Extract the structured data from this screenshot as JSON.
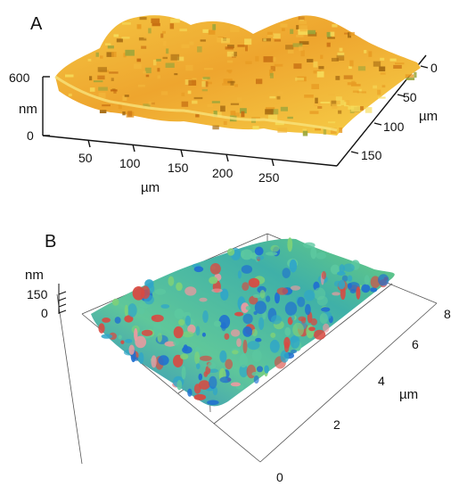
{
  "panels": [
    {
      "label": "A",
      "z_axis": {
        "unit": "nm",
        "ticks": [
          "600",
          "0"
        ]
      },
      "x_axis": {
        "unit": "µm",
        "ticks": [
          "50",
          "100",
          "150",
          "200",
          "250"
        ]
      },
      "y_axis": {
        "unit": "µm",
        "ticks": [
          "0",
          "50",
          "100",
          "150"
        ]
      },
      "surface_colors": [
        "#f6dc5a",
        "#f2b63a",
        "#e79a22",
        "#c46a10",
        "#a56a12",
        "#9aa53a"
      ]
    },
    {
      "label": "B",
      "z_axis": {
        "unit": "nm",
        "ticks": [
          "150",
          "0"
        ]
      },
      "x_axis": {
        "unit": "",
        "ticks": []
      },
      "y_axis": {
        "unit": "µm",
        "ticks": [
          "0",
          "2",
          "4",
          "6",
          "8"
        ]
      },
      "surface_colors": [
        "#1f6fd1",
        "#30a6c8",
        "#5cc8a0",
        "#7fd277",
        "#d84a42",
        "#ee9aa0"
      ]
    }
  ]
}
